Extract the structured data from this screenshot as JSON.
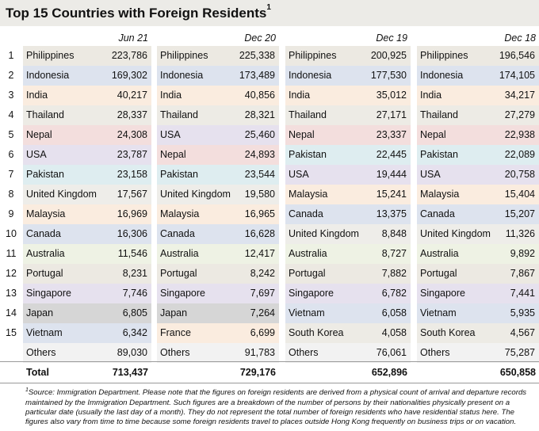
{
  "title": "Top 15 Countries with Foreign Residents",
  "title_footnote_marker": "1",
  "ranks": [
    "1",
    "2",
    "3",
    "4",
    "5",
    "6",
    "7",
    "8",
    "9",
    "10",
    "11",
    "12",
    "13",
    "14",
    "15"
  ],
  "columns": [
    {
      "header": "Jun 21",
      "rows": [
        {
          "country": "Philippines",
          "value": "223,786"
        },
        {
          "country": "Indonesia",
          "value": "169,302"
        },
        {
          "country": "India",
          "value": "40,217"
        },
        {
          "country": "Thailand",
          "value": "28,337"
        },
        {
          "country": "Nepal",
          "value": "24,308"
        },
        {
          "country": "USA",
          "value": "23,787"
        },
        {
          "country": "Pakistan",
          "value": "23,158"
        },
        {
          "country": "United Kingdom",
          "value": "17,567"
        },
        {
          "country": "Malaysia",
          "value": "16,969"
        },
        {
          "country": "Canada",
          "value": "16,306"
        },
        {
          "country": "Australia",
          "value": "11,546"
        },
        {
          "country": "Portugal",
          "value": "8,231"
        },
        {
          "country": "Singapore",
          "value": "7,746"
        },
        {
          "country": "Japan",
          "value": "6,805"
        },
        {
          "country": "Vietnam",
          "value": "6,342"
        },
        {
          "country": "Others",
          "value": "89,030"
        }
      ],
      "total": "713,437"
    },
    {
      "header": "Dec 20",
      "rows": [
        {
          "country": "Philippines",
          "value": "225,338"
        },
        {
          "country": "Indonesia",
          "value": "173,489"
        },
        {
          "country": "India",
          "value": "40,856"
        },
        {
          "country": "Thailand",
          "value": "28,321"
        },
        {
          "country": "USA",
          "value": "25,460"
        },
        {
          "country": "Nepal",
          "value": "24,893"
        },
        {
          "country": "Pakistan",
          "value": "23,544"
        },
        {
          "country": "United Kingdom",
          "value": "19,580"
        },
        {
          "country": "Malaysia",
          "value": "16,965"
        },
        {
          "country": "Canada",
          "value": "16,628"
        },
        {
          "country": "Australia",
          "value": "12,417"
        },
        {
          "country": "Portugal",
          "value": "8,242"
        },
        {
          "country": "Singapore",
          "value": "7,697"
        },
        {
          "country": "Japan",
          "value": "7,264"
        },
        {
          "country": "France",
          "value": "6,699"
        },
        {
          "country": "Others",
          "value": "91,783"
        }
      ],
      "total": "729,176"
    },
    {
      "header": "Dec 19",
      "rows": [
        {
          "country": "Philippines",
          "value": "200,925"
        },
        {
          "country": "Indonesia",
          "value": "177,530"
        },
        {
          "country": "India",
          "value": "35,012"
        },
        {
          "country": "Thailand",
          "value": "27,171"
        },
        {
          "country": "Nepal",
          "value": "23,337"
        },
        {
          "country": "Pakistan",
          "value": "22,445"
        },
        {
          "country": "USA",
          "value": "19,444"
        },
        {
          "country": "Malaysia",
          "value": "15,241"
        },
        {
          "country": "Canada",
          "value": "13,375"
        },
        {
          "country": "United Kingdom",
          "value": "8,848"
        },
        {
          "country": "Australia",
          "value": "8,727"
        },
        {
          "country": "Portugal",
          "value": "7,882"
        },
        {
          "country": "Singapore",
          "value": "6,782"
        },
        {
          "country": "Vietnam",
          "value": "6,058"
        },
        {
          "country": "South Korea",
          "value": "4,058"
        },
        {
          "country": "Others",
          "value": "76,061"
        }
      ],
      "total": "652,896"
    },
    {
      "header": "Dec 18",
      "rows": [
        {
          "country": "Philippines",
          "value": "196,546"
        },
        {
          "country": "Indonesia",
          "value": "174,105"
        },
        {
          "country": "India",
          "value": "34,217"
        },
        {
          "country": "Thailand",
          "value": "27,279"
        },
        {
          "country": "Nepal",
          "value": "22,938"
        },
        {
          "country": "Pakistan",
          "value": "22,089"
        },
        {
          "country": "USA",
          "value": "20,758"
        },
        {
          "country": "Malaysia",
          "value": "15,404"
        },
        {
          "country": "Canada",
          "value": "15,207"
        },
        {
          "country": "United Kingdom",
          "value": "11,326"
        },
        {
          "country": "Australia",
          "value": "9,892"
        },
        {
          "country": "Portugal",
          "value": "7,867"
        },
        {
          "country": "Singapore",
          "value": "7,441"
        },
        {
          "country": "Vietnam",
          "value": "5,935"
        },
        {
          "country": "South Korea",
          "value": "4,567"
        },
        {
          "country": "Others",
          "value": "75,287"
        }
      ],
      "total": "650,858"
    }
  ],
  "total_label": "Total",
  "country_colors": {
    "Philippines": "#ece9e2",
    "Indonesia": "#dde3ee",
    "India": "#faecdf",
    "Thailand": "#edebe5",
    "Nepal": "#f3dedd",
    "USA": "#e6e1ee",
    "Pakistan": "#deedf0",
    "United Kingdom": "#eeede9",
    "Malaysia": "#faecdf",
    "Canada": "#dde3ee",
    "Australia": "#eef2e4",
    "Portugal": "#ece9e2",
    "Singapore": "#e6e1ee",
    "Japan": "#d6d6d6",
    "Vietnam": "#dde3ee",
    "France": "#faecdf",
    "South Korea": "#edebe5",
    "Others": "#f2f2f2"
  },
  "footnote": {
    "marker": "1",
    "text": "Source: Immigration Department. Please note that the figures on foreign residents are derived from a physical count of arrival and departure records maintained by the Immigration Department. Such figures are a breakdown of the number of persons by their  nationalities physically present on a particular date (usually the last day of a month). They do not represent the total number of foreign residents who have residential status here. The figures also vary from time to time because some foreign residents travel to places outside Hong Kong frequently on business trips or on vacation."
  }
}
